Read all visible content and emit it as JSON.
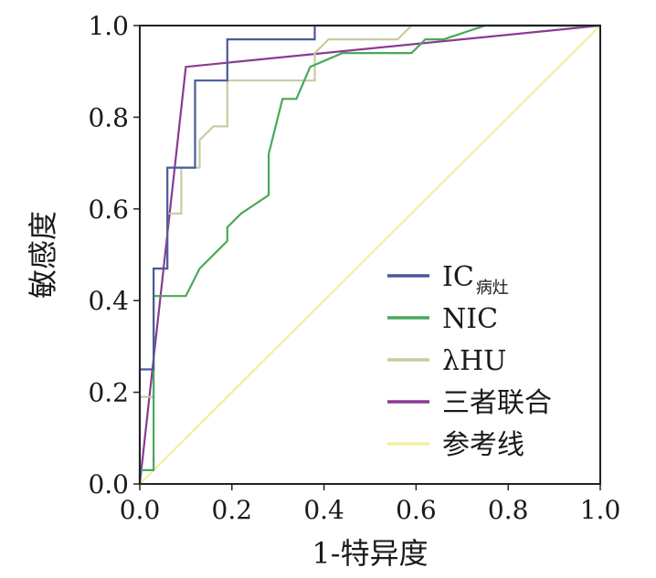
{
  "chart_data": {
    "type": "line",
    "xlabel": "1-特异度",
    "ylabel": "敏感度",
    "xlim": [
      0.0,
      1.0
    ],
    "ylim": [
      0.0,
      1.0
    ],
    "xticks": [
      "0.0",
      "0.2",
      "0.4",
      "0.6",
      "0.8",
      "1.0"
    ],
    "yticks": [
      "0.0",
      "0.2",
      "0.4",
      "0.6",
      "0.8",
      "1.0"
    ],
    "grid": false,
    "legend_position": "bottom-right",
    "series": [
      {
        "name": "IC",
        "name_sub": "病灶",
        "color": "#4a5a9a",
        "points": [
          [
            0.0,
            0.0
          ],
          [
            0.0,
            0.25
          ],
          [
            0.03,
            0.25
          ],
          [
            0.03,
            0.47
          ],
          [
            0.06,
            0.47
          ],
          [
            0.06,
            0.69
          ],
          [
            0.12,
            0.69
          ],
          [
            0.12,
            0.88
          ],
          [
            0.19,
            0.88
          ],
          [
            0.19,
            0.97
          ],
          [
            0.38,
            0.97
          ],
          [
            0.38,
            1.0
          ],
          [
            1.0,
            1.0
          ]
        ]
      },
      {
        "name": "NIC",
        "color": "#4aa85a",
        "points": [
          [
            0.0,
            0.0
          ],
          [
            0.0,
            0.03
          ],
          [
            0.03,
            0.03
          ],
          [
            0.03,
            0.41
          ],
          [
            0.1,
            0.41
          ],
          [
            0.13,
            0.47
          ],
          [
            0.19,
            0.53
          ],
          [
            0.19,
            0.56
          ],
          [
            0.22,
            0.59
          ],
          [
            0.28,
            0.63
          ],
          [
            0.28,
            0.72
          ],
          [
            0.31,
            0.84
          ],
          [
            0.34,
            0.84
          ],
          [
            0.37,
            0.91
          ],
          [
            0.44,
            0.94
          ],
          [
            0.59,
            0.94
          ],
          [
            0.62,
            0.97
          ],
          [
            0.66,
            0.97
          ],
          [
            0.75,
            1.0
          ],
          [
            1.0,
            1.0
          ]
        ]
      },
      {
        "name": "λHU",
        "color": "#c8cba0",
        "points": [
          [
            0.0,
            0.0
          ],
          [
            0.0,
            0.19
          ],
          [
            0.03,
            0.19
          ],
          [
            0.03,
            0.47
          ],
          [
            0.06,
            0.47
          ],
          [
            0.06,
            0.59
          ],
          [
            0.09,
            0.59
          ],
          [
            0.09,
            0.69
          ],
          [
            0.13,
            0.69
          ],
          [
            0.13,
            0.75
          ],
          [
            0.16,
            0.78
          ],
          [
            0.19,
            0.78
          ],
          [
            0.19,
            0.88
          ],
          [
            0.38,
            0.88
          ],
          [
            0.38,
            0.94
          ],
          [
            0.41,
            0.97
          ],
          [
            0.56,
            0.97
          ],
          [
            0.59,
            1.0
          ],
          [
            1.0,
            1.0
          ]
        ]
      },
      {
        "name": "三者联合",
        "color": "#8a3a94",
        "points": [
          [
            0.0,
            0.0
          ],
          [
            0.1,
            0.91
          ],
          [
            1.0,
            1.0
          ]
        ]
      },
      {
        "name": "参考线",
        "color": "#f0f0a0",
        "points": [
          [
            0.0,
            0.0
          ],
          [
            1.0,
            1.0
          ]
        ]
      }
    ]
  }
}
